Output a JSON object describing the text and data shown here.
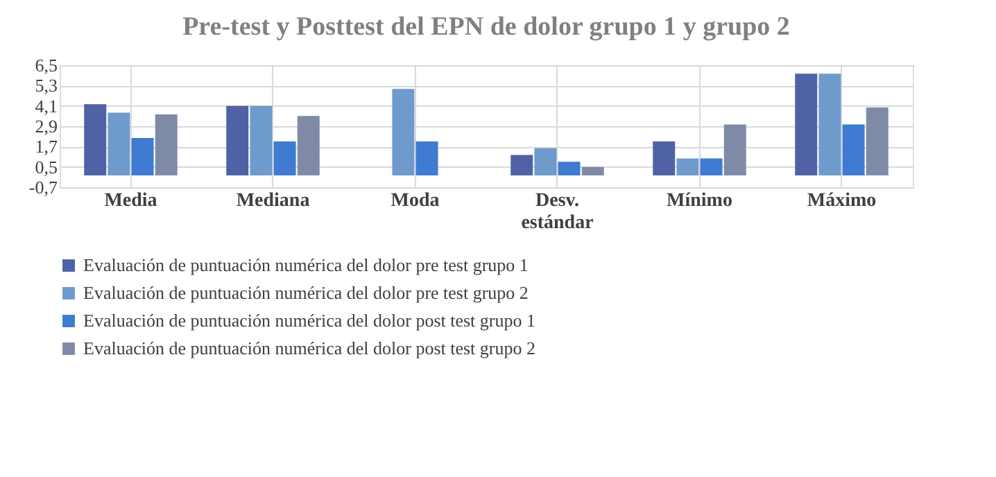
{
  "chart_data": {
    "type": "bar",
    "title": "Pre-test y Posttest del EPN de dolor grupo 1 y grupo 2",
    "categories": [
      "Media",
      "Mediana",
      "Moda",
      "Desv. estándar",
      "Mínimo",
      "Máximo"
    ],
    "series": [
      {
        "name": "Evaluación de puntuación numérica del dolor pre test grupo 1",
        "color": "#4f62a6",
        "values": [
          4.2,
          4.1,
          null,
          1.2,
          2,
          6
        ]
      },
      {
        "name": "Evaluación de puntuación numérica del dolor pre test grupo 2",
        "color": "#6f9bcc",
        "values": [
          3.7,
          4.1,
          5.1,
          1.6,
          1,
          6
        ]
      },
      {
        "name": "Evaluación de puntuación numérica del dolor post test grupo 1",
        "color": "#3f7bd1",
        "values": [
          2.2,
          2,
          2,
          0.8,
          1,
          3
        ]
      },
      {
        "name": "Evaluación de puntuación numérica del dolor  post test grupo 2",
        "color": "#7f8ba6",
        "values": [
          3.6,
          3.5,
          null,
          0.5,
          3,
          4
        ]
      }
    ],
    "ylim": [
      -0.7,
      6.5
    ],
    "yticks": [
      {
        "value": -0.7,
        "label": "-0,7"
      },
      {
        "value": 0.5,
        "label": "0,5"
      },
      {
        "value": 1.7,
        "label": "1,7"
      },
      {
        "value": 2.9,
        "label": "2,9"
      },
      {
        "value": 4.1,
        "label": "4,1"
      },
      {
        "value": 5.3,
        "label": "5,3"
      },
      {
        "value": 6.5,
        "label": "6,5"
      }
    ],
    "grid": true,
    "legend": "bottom"
  }
}
